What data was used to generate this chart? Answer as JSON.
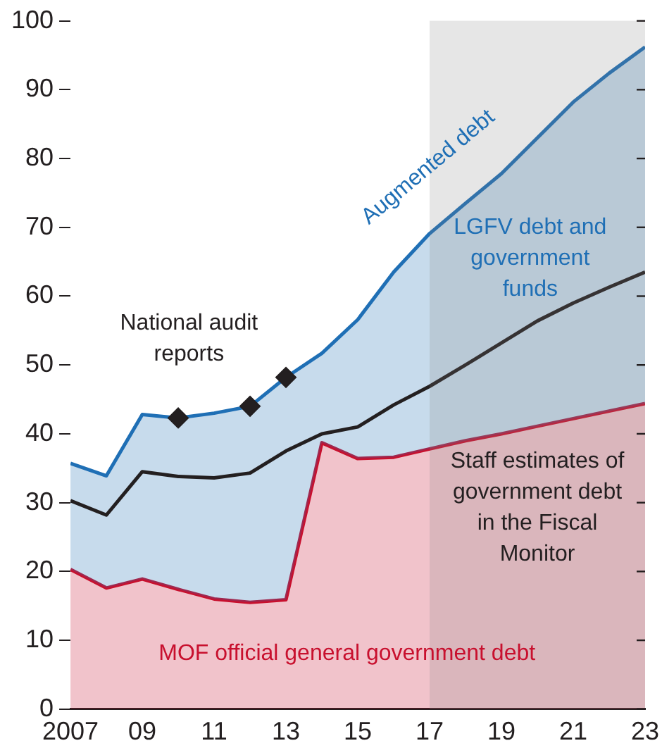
{
  "chart_data": {
    "type": "line",
    "x": [
      2007,
      2008,
      2009,
      2010,
      2011,
      2012,
      2013,
      2014,
      2015,
      2016,
      2017,
      2018,
      2019,
      2020,
      2021,
      2022,
      2023
    ],
    "series": [
      {
        "name": "MOF official general government debt",
        "type": "area",
        "color": "#c8102e",
        "values": [
          20.3,
          17.6,
          18.9,
          17.4,
          16,
          15.5,
          15.9,
          38.7,
          36.4,
          36.6,
          37.8,
          39,
          40,
          41.1,
          42.2,
          43.3,
          44.4
        ]
      },
      {
        "name": "Augmented debt",
        "type": "area",
        "color": "#1f6fb5",
        "values": [
          35.7,
          33.9,
          42.8,
          42.3,
          43,
          44,
          48.2,
          51.7,
          56.6,
          63.5,
          69.1,
          73.5,
          77.8,
          83,
          88.2,
          92.4,
          96.2
        ]
      },
      {
        "name": "Staff estimates of government debt in the Fiscal Monitor",
        "type": "line",
        "color": "#231f20",
        "values": [
          30.3,
          28.2,
          34.5,
          33.8,
          33.6,
          34.3,
          37.5,
          40,
          41,
          44.2,
          46.9,
          50,
          53.2,
          56.4,
          59,
          61.3,
          63.5
        ]
      },
      {
        "name": "National audit reports",
        "type": "scatter",
        "marker": "diamond",
        "color": "#231f20",
        "x": [
          2010,
          2012,
          2013
        ],
        "values": [
          42.3,
          44,
          48.2
        ]
      }
    ],
    "annotations": [
      "LGFV debt and government funds"
    ],
    "bands": [
      {
        "axis": "x",
        "from": 2017,
        "to": 2023,
        "color": "#808080"
      }
    ],
    "xlim": [
      2007,
      2023
    ],
    "xticks": [
      {
        "value": 2007,
        "label": "2007"
      },
      {
        "value": 2009,
        "label": "09"
      },
      {
        "value": 2011,
        "label": "11"
      },
      {
        "value": 2013,
        "label": "13"
      },
      {
        "value": 2015,
        "label": "15"
      },
      {
        "value": 2017,
        "label": "17"
      },
      {
        "value": 2019,
        "label": "19"
      },
      {
        "value": 2021,
        "label": "21"
      },
      {
        "value": 2023,
        "label": "23"
      }
    ],
    "ylim": [
      0,
      100
    ],
    "yticks": [
      0,
      10,
      20,
      30,
      40,
      50,
      60,
      70,
      80,
      90,
      100
    ]
  }
}
